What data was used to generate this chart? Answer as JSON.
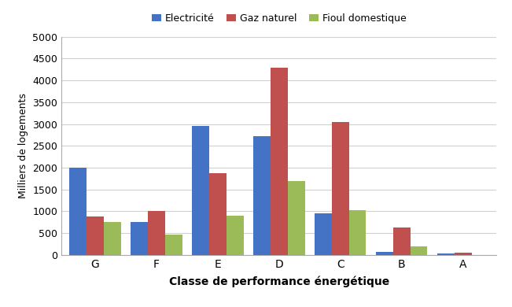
{
  "categories": [
    "G",
    "F",
    "E",
    "D",
    "C",
    "B",
    "A"
  ],
  "series": {
    "Electricité": [
      2000,
      750,
      2950,
      2730,
      950,
      60,
      25
    ],
    "Gaz naturel": [
      880,
      1000,
      1870,
      4300,
      3050,
      620,
      40
    ],
    "Fioul domestique": [
      760,
      470,
      900,
      1690,
      1020,
      200,
      0
    ]
  },
  "colors": {
    "Electricité": "#4472C4",
    "Gaz naturel": "#C0504D",
    "Fioul domestique": "#9BBB59"
  },
  "ylabel": "Milliers de logements",
  "xlabel": "Classe de performance énergétique",
  "ylim": [
    0,
    5000
  ],
  "yticks": [
    0,
    500,
    1000,
    1500,
    2000,
    2500,
    3000,
    3500,
    4000,
    4500,
    5000
  ],
  "legend_labels": [
    "Electricité",
    "Gaz naturel",
    "Fioul domestique"
  ],
  "bar_width": 0.28,
  "background_color": "#ffffff",
  "grid_color": "#d0d0d0"
}
